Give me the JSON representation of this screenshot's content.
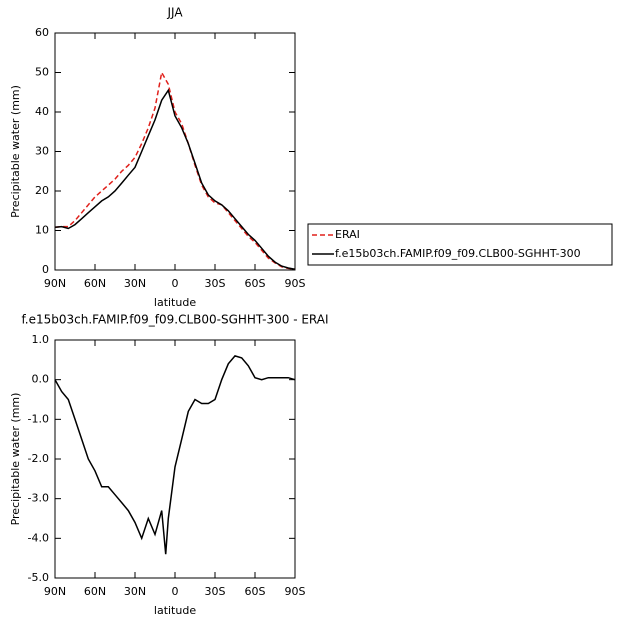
{
  "chart_data": [
    {
      "type": "line",
      "title": "JJA",
      "ylabel": "Precipitable water (mm)",
      "xlabel": "latitude",
      "xlim": [
        90,
        -90
      ],
      "xticks": [
        {
          "value": 90,
          "label": "90N"
        },
        {
          "value": 60,
          "label": "60N"
        },
        {
          "value": 30,
          "label": "30N"
        },
        {
          "value": 0,
          "label": "0"
        },
        {
          "value": -30,
          "label": "30S"
        },
        {
          "value": -60,
          "label": "60S"
        },
        {
          "value": -90,
          "label": "90S"
        }
      ],
      "ylim": [
        0,
        60
      ],
      "yticks": [
        0,
        10,
        20,
        30,
        40,
        50,
        60
      ],
      "legend": "right",
      "x": [
        90,
        85,
        80,
        75,
        70,
        65,
        60,
        55,
        50,
        45,
        40,
        35,
        30,
        25,
        20,
        15,
        10,
        5,
        0,
        -5,
        -10,
        -15,
        -20,
        -25,
        -30,
        -35,
        -40,
        -45,
        -50,
        -55,
        -60,
        -65,
        -70,
        -75,
        -80,
        -85,
        -90
      ],
      "series": [
        {
          "name": "ERAI",
          "color": "#e0201b",
          "dashed": true,
          "values": [
            10.8,
            11,
            11,
            12.5,
            14.5,
            16.5,
            18.5,
            20,
            21.5,
            23,
            25,
            26.5,
            28.5,
            32,
            36,
            41,
            50,
            47,
            40,
            37,
            32,
            26.5,
            21.5,
            18.5,
            17,
            16.5,
            14.5,
            12.5,
            10.5,
            8.5,
            7,
            5,
            3,
            1.8,
            0.8,
            0.4,
            0.2
          ]
        },
        {
          "name": "f.e15b03ch.FAMIP.f09_f09.CLB00-SGHHT-300",
          "color": "#000000",
          "dashed": false,
          "values": [
            10.8,
            11,
            10.5,
            11.5,
            13,
            14.5,
            16,
            17.5,
            18.5,
            20,
            22,
            24,
            26,
            30,
            34,
            38,
            43,
            45.5,
            39,
            36,
            32,
            27,
            22,
            19,
            17.5,
            16.5,
            15,
            13,
            11,
            9,
            7.5,
            5.5,
            3.5,
            2,
            1,
            0.5,
            0.2
          ]
        }
      ]
    },
    {
      "type": "line",
      "title": "f.e15b03ch.FAMIP.f09_f09.CLB00-SGHHT-300  -  ERAI",
      "ylabel": "Precipitable water (mm)",
      "xlabel": "latitude",
      "xlim": [
        90,
        -90
      ],
      "xticks": [
        {
          "value": 90,
          "label": "90N"
        },
        {
          "value": 60,
          "label": "60N"
        },
        {
          "value": 30,
          "label": "30N"
        },
        {
          "value": 0,
          "label": "0"
        },
        {
          "value": -30,
          "label": "30S"
        },
        {
          "value": -60,
          "label": "60S"
        },
        {
          "value": -90,
          "label": "90S"
        }
      ],
      "ylim": [
        -5,
        1
      ],
      "yticks": [
        {
          "value": 1,
          "label": "1.0"
        },
        {
          "value": 0,
          "label": "0.0"
        },
        {
          "value": -1,
          "label": "-1.0"
        },
        {
          "value": -2,
          "label": "-2.0"
        },
        {
          "value": -3,
          "label": "-3.0"
        },
        {
          "value": -4,
          "label": "-4.0"
        },
        {
          "value": -5,
          "label": "-5.0"
        }
      ],
      "x": [
        90,
        85,
        80,
        75,
        70,
        65,
        60,
        55,
        50,
        45,
        40,
        35,
        30,
        25,
        20,
        15,
        10,
        7,
        5,
        0,
        -5,
        -10,
        -15,
        -20,
        -25,
        -30,
        -35,
        -40,
        -45,
        -50,
        -55,
        -60,
        -65,
        -70,
        -75,
        -80,
        -85,
        -90
      ],
      "series": [
        {
          "color": "#000000",
          "dashed": false,
          "values": [
            0,
            -0.3,
            -0.5,
            -1,
            -1.5,
            -2,
            -2.3,
            -2.7,
            -2.7,
            -2.9,
            -3.1,
            -3.3,
            -3.6,
            -4.0,
            -3.5,
            -3.9,
            -3.3,
            -4.4,
            -3.5,
            -2.2,
            -1.5,
            -0.8,
            -0.5,
            -0.6,
            -0.6,
            -0.5,
            0,
            0.4,
            0.6,
            0.55,
            0.35,
            0.05,
            0,
            0.05,
            0.05,
            0.05,
            0.05,
            0
          ]
        }
      ]
    }
  ]
}
